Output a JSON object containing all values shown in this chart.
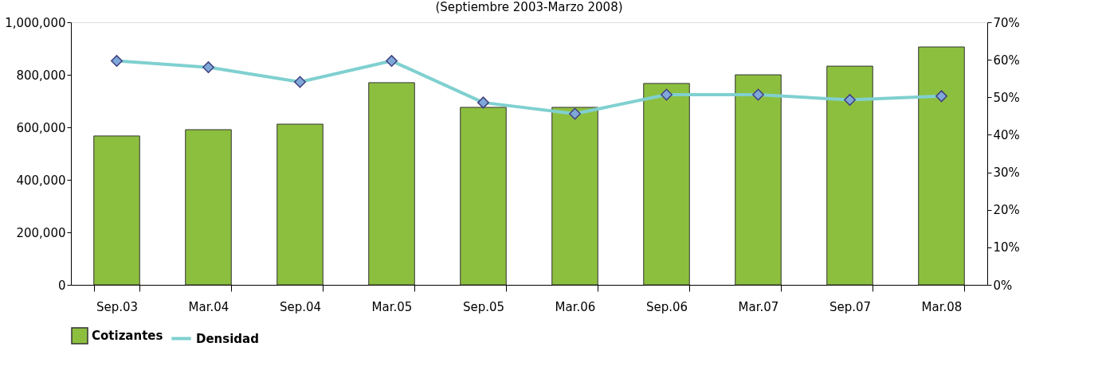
{
  "chart_data": {
    "type": "bar",
    "subtitle": "(Septiembre 2003-Marzo 2008)",
    "categories": [
      "Sep.03",
      "Mar.04",
      "Sep.04",
      "Mar.05",
      "Sep.05",
      "Mar.06",
      "Sep.06",
      "Mar.07",
      "Sep.07",
      "Mar.08"
    ],
    "series": [
      {
        "name": "Cotizantes",
        "color": "#8dbf3f",
        "values": [
          567000,
          591000,
          612000,
          770000,
          676000,
          676000,
          767000,
          800000,
          833000,
          906000
        ]
      },
      {
        "name": "Densidad",
        "type": "line",
        "axis": "y2",
        "color": "#80d0d0",
        "marker": "diamond",
        "values": [
          59.7,
          58.0,
          54.1,
          59.7,
          48.6,
          45.6,
          50.7,
          50.7,
          49.3,
          50.3
        ]
      }
    ],
    "ylim": [
      0,
      1000000
    ],
    "yticks": [
      0,
      {
        "value": 200000,
        "label": "200,000"
      },
      {
        "value": 400000,
        "label": "400,000"
      },
      {
        "value": 600000,
        "label": "600,000"
      },
      {
        "value": 800000,
        "label": "800,000"
      },
      {
        "value": 1000000,
        "label": "1,000,000"
      }
    ],
    "y2lim": [
      0,
      70
    ],
    "y2ticks": [
      {
        "value": 0,
        "label": "0%"
      },
      {
        "value": 10,
        "label": "10%"
      },
      {
        "value": 20,
        "label": "20%"
      },
      {
        "value": 30,
        "label": "30%"
      },
      {
        "value": 40,
        "label": "40%"
      },
      {
        "value": 50,
        "label": "50%"
      },
      {
        "value": 60,
        "label": "60%"
      },
      {
        "value": 70,
        "label": "70%"
      }
    ],
    "grid": false,
    "legend": "bottom",
    "line_style": "solid"
  }
}
